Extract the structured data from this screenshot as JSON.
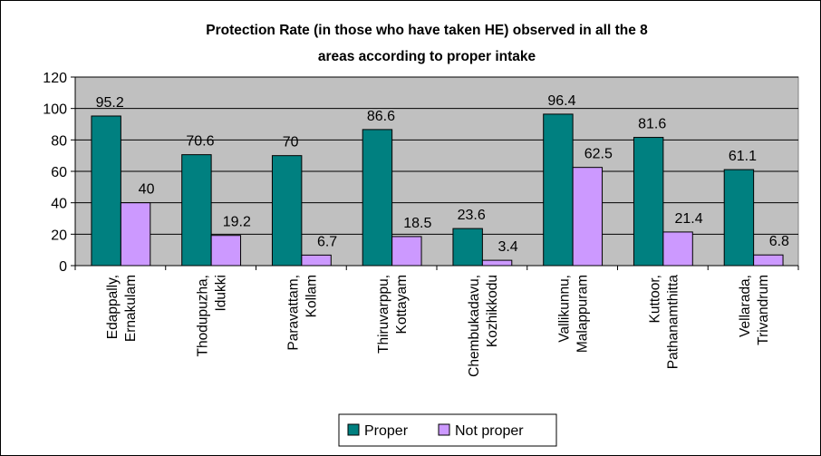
{
  "chart_data": {
    "type": "bar",
    "title_lines": [
      "Protection Rate (in those who have taken HE) observed in all the 8",
      "areas according to proper intake"
    ],
    "categories": [
      [
        "Edappally,",
        "Ernakulam"
      ],
      [
        "Thodupuzha,",
        "Idukki"
      ],
      [
        "Paravattam,",
        "Kollam"
      ],
      [
        "Thiruvarppu,",
        "Kottayam"
      ],
      [
        "Chembukadavu,",
        "Kozhikkodu"
      ],
      [
        "Vallikunnu,",
        "Malappuram"
      ],
      [
        "Kuttoor,",
        "Pathanamthitta"
      ],
      [
        "Vellarada,",
        "Trivandrum"
      ]
    ],
    "series": [
      {
        "name": "Proper",
        "color": "#008080",
        "values": [
          95.2,
          70.6,
          70,
          86.6,
          23.6,
          96.4,
          81.6,
          61.1
        ]
      },
      {
        "name": "Not proper",
        "color": "#CC99FF",
        "values": [
          40,
          19.2,
          6.7,
          18.5,
          3.4,
          62.5,
          21.4,
          6.8
        ]
      }
    ],
    "ylim": [
      0,
      120
    ],
    "yticks": [
      "0",
      "20",
      "40",
      "60",
      "80",
      "100",
      "120"
    ],
    "plot_background": "#C0C0C0",
    "grid": true,
    "legend_position": "bottom"
  }
}
